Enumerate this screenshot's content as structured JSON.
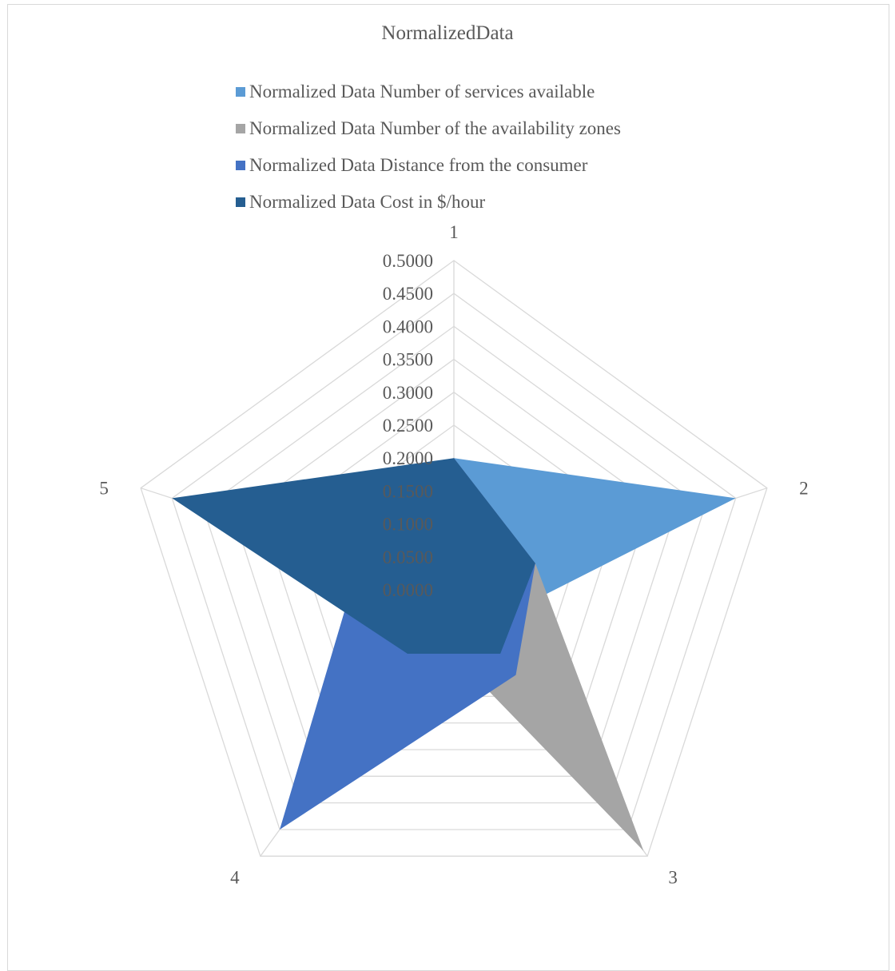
{
  "chart_data": {
    "type": "radar",
    "title": "NormalizedData",
    "categories": [
      "1",
      "2",
      "3",
      "4",
      "5"
    ],
    "rlim": [
      0,
      0.5
    ],
    "ticks": [
      "0.0000",
      "0.0500",
      "0.1000",
      "0.1500",
      "0.2000",
      "0.2500",
      "0.3000",
      "0.3500",
      "0.4000",
      "0.4500",
      "0.5000"
    ],
    "grid": true,
    "legend_position": "top",
    "series": [
      {
        "name": "Normalized Data Number of services available",
        "color": "#5b9bd5",
        "values": [
          0.2,
          0.45,
          0.07,
          0.07,
          0.15
        ]
      },
      {
        "name": "Normalized Data Number of the availability zones",
        "color": "#a5a5a5",
        "values": [
          0.2,
          0.13,
          0.49,
          0.07,
          0.15
        ]
      },
      {
        "name": "Normalized Data Distance from the consumer",
        "color": "#4472c4",
        "values": [
          0.2,
          0.13,
          0.16,
          0.45,
          0.15
        ]
      },
      {
        "name": "Normalized Data Cost in $/hour",
        "color": "#255e91",
        "values": [
          0.2,
          0.13,
          0.12,
          0.12,
          0.45
        ]
      }
    ]
  }
}
